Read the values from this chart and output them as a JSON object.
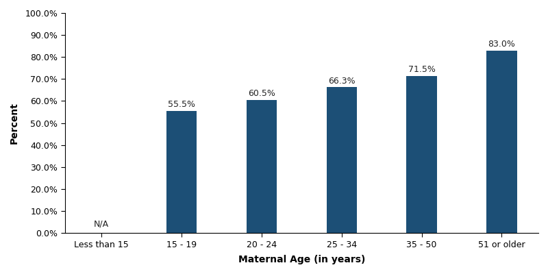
{
  "categories": [
    "Less than 15",
    "15 - 19",
    "20 - 24",
    "25 - 34",
    "35 - 50",
    "51 or older"
  ],
  "values": [
    0,
    55.5,
    60.5,
    66.3,
    71.5,
    83.0
  ],
  "bar_color": "#1c4f76",
  "na_label": "N/A",
  "bar_labels": [
    "",
    "55.5%",
    "60.5%",
    "66.3%",
    "71.5%",
    "83.0%"
  ],
  "xlabel": "Maternal Age (in years)",
  "ylabel": "Percent",
  "ylim": [
    0,
    100
  ],
  "yticks": [
    0,
    10,
    20,
    30,
    40,
    50,
    60,
    70,
    80,
    90,
    100
  ],
  "ytick_labels": [
    "0.0%",
    "10.0%",
    "20.0%",
    "30.0%",
    "40.0%",
    "50.0%",
    "60.0%",
    "70.0%",
    "80.0%",
    "90.0%",
    "100.0%"
  ],
  "xlabel_fontsize": 10,
  "ylabel_fontsize": 10,
  "tick_fontsize": 9,
  "label_fontsize": 9,
  "pvalue_fontsize": 9,
  "background_color": "#ffffff",
  "bar_width": 0.38
}
